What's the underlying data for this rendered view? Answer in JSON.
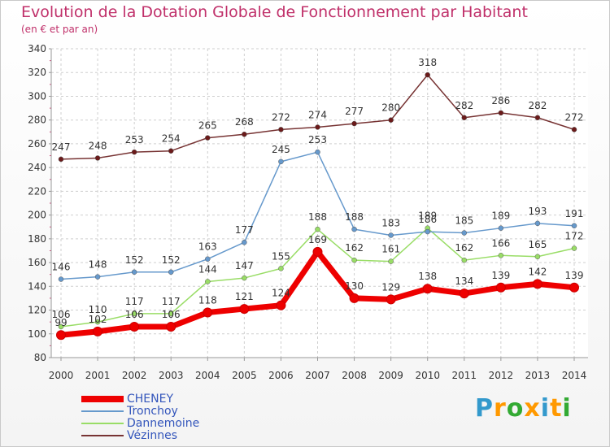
{
  "chart_data": {
    "type": "line",
    "title": "Evolution de la Dotation Globale de Fonctionnement par Habitant",
    "subtitle": "(en € et par an)",
    "xlabel": "",
    "ylabel": "",
    "x": [
      "2000",
      "2001",
      "2002",
      "2003",
      "2004",
      "2005",
      "2006",
      "2007",
      "2008",
      "2009",
      "2010",
      "2011",
      "2012",
      "2013",
      "2014"
    ],
    "ylim": [
      80,
      340
    ],
    "yticks": [
      80,
      100,
      120,
      140,
      160,
      180,
      200,
      220,
      240,
      260,
      280,
      300,
      320,
      340
    ],
    "grid": true,
    "legend_position": "bottom-left",
    "series": [
      {
        "name": "CHENEY",
        "color": "#ee0000",
        "values": [
          99,
          102,
          106,
          106,
          118,
          121,
          124,
          169,
          130,
          129,
          138,
          134,
          139,
          142,
          139
        ]
      },
      {
        "name": "Tronchoy",
        "color": "#6699cc",
        "values": [
          146,
          148,
          152,
          152,
          163,
          177,
          245,
          253,
          188,
          183,
          186,
          185,
          189,
          193,
          191
        ]
      },
      {
        "name": "Dannemoine",
        "color": "#99dd66",
        "values": [
          106,
          110,
          117,
          117,
          144,
          147,
          155,
          188,
          162,
          161,
          189,
          162,
          166,
          165,
          172
        ]
      },
      {
        "name": "Vézinnes",
        "color": "#773333",
        "values": [
          247,
          248,
          253,
          254,
          265,
          268,
          272,
          274,
          277,
          280,
          318,
          282,
          286,
          282,
          272
        ]
      }
    ]
  },
  "brand": {
    "letters": [
      "P",
      "r",
      "o",
      "x",
      "i",
      "t",
      "i"
    ],
    "colors": [
      "#3399cc",
      "#ff9900",
      "#33aa33",
      "#ff9900",
      "#3399cc",
      "#ff9900",
      "#33aa33"
    ]
  }
}
